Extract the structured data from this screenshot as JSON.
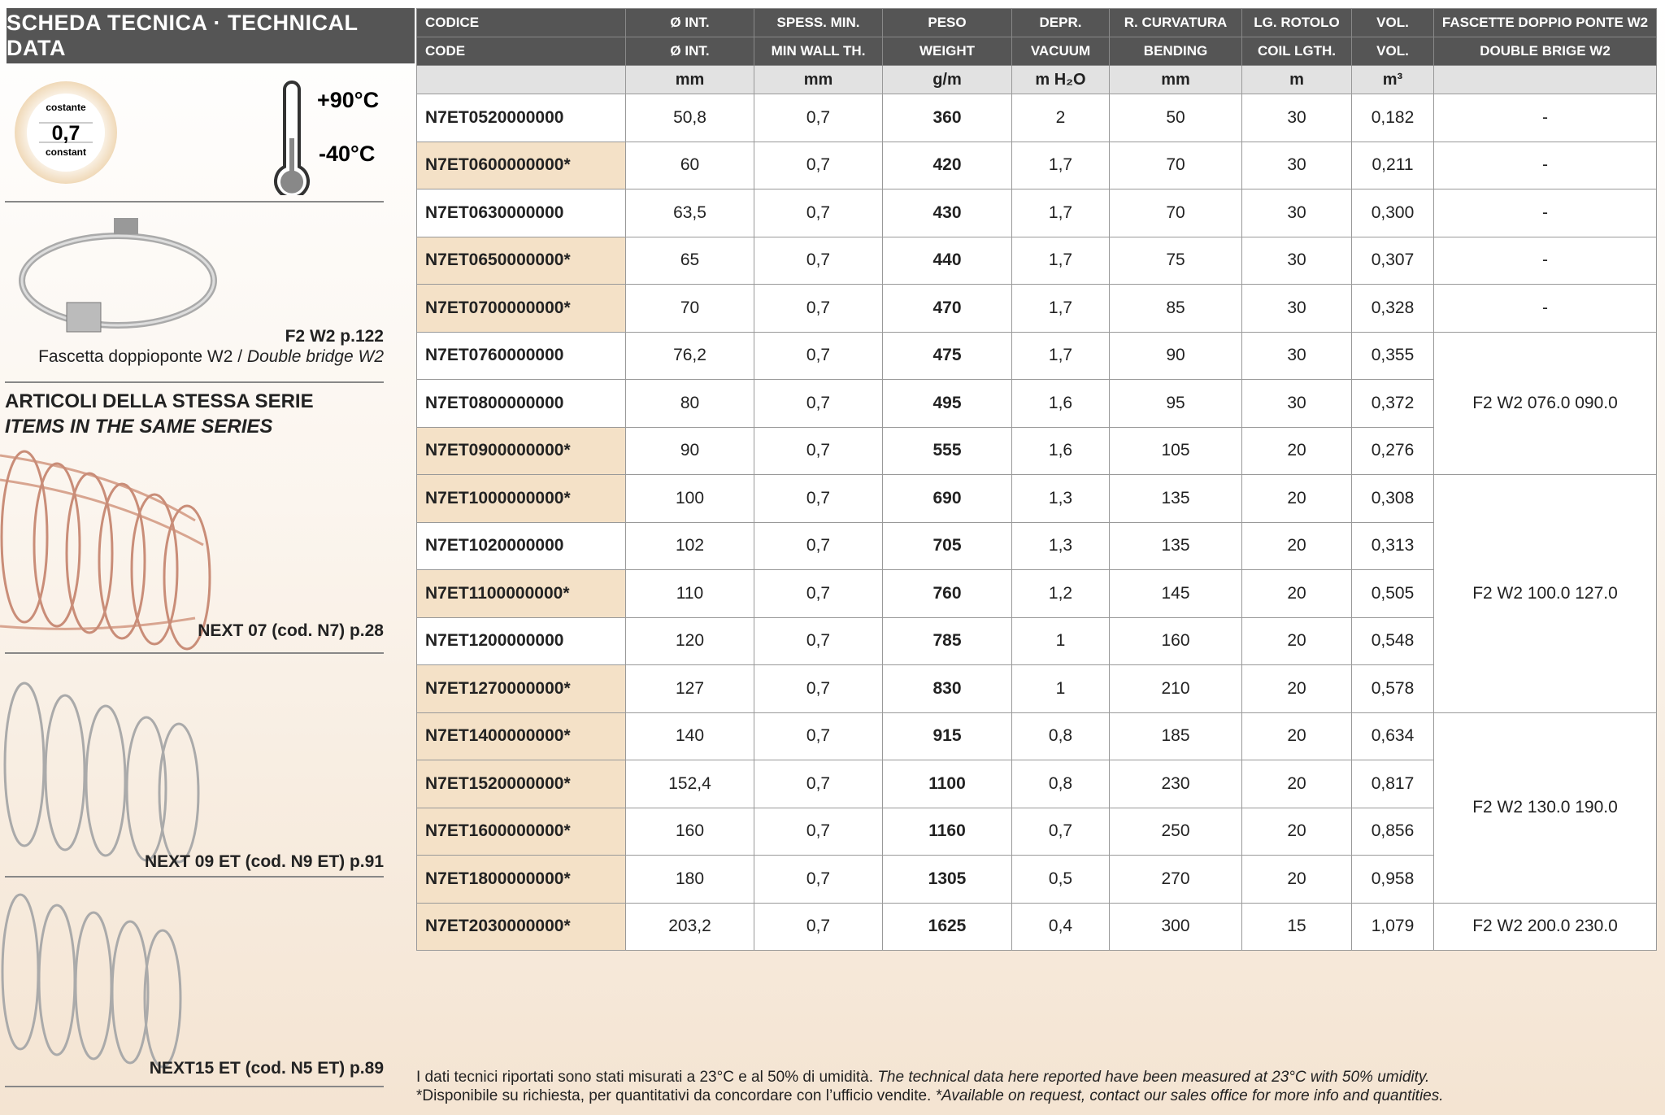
{
  "sidebar": {
    "title": "SCHEDA TECNICA · TECHNICAL DATA",
    "badge": {
      "top": "costante",
      "value": "0,7",
      "bottom": "constant"
    },
    "temp": {
      "max": "+90°C",
      "min": "-40°C"
    },
    "clamp": {
      "ref": "F2 W2 p.122",
      "caption_it": "Fascetta doppioponte W2 /",
      "caption_en": "Double bridge W2"
    },
    "series_title_it": "ARTICOLI DELLA STESSA SERIE",
    "series_title_en": "ITEMS IN THE SAME SERIES",
    "items": [
      "NEXT 07 (cod. N7) p.28",
      "NEXT 09 ET (cod. N9 ET) p.91",
      "NEXT15 ET (cod. N5 ET) p.89"
    ]
  },
  "table": {
    "header_it": [
      "CODICE",
      "Ø INT.",
      "SPESS. MIN.",
      "PESO",
      "DEPR.",
      "R. CURVATURA",
      "LG. ROTOLO",
      "VOL.",
      "FASCETTE DOPPIO PONTE W2"
    ],
    "header_en": [
      "CODE",
      "Ø INT.",
      "MIN WALL TH.",
      "WEIGHT",
      "VACUUM",
      "BENDING",
      "COIL LGTH.",
      "VOL.",
      "DOUBLE BRIGE W2"
    ],
    "units": [
      "mm",
      "mm",
      "g/m",
      "m H₂O",
      "mm",
      "m",
      "m³"
    ],
    "rows": [
      {
        "code": "N7ET0520000000",
        "highlight": false,
        "values": [
          "50,8",
          "0,7",
          "360",
          "2",
          "50",
          "30",
          "0,182"
        ]
      },
      {
        "code": "N7ET0600000000*",
        "highlight": true,
        "values": [
          "60",
          "0,7",
          "420",
          "1,7",
          "70",
          "30",
          "0,211"
        ]
      },
      {
        "code": "N7ET0630000000",
        "highlight": false,
        "values": [
          "63,5",
          "0,7",
          "430",
          "1,7",
          "70",
          "30",
          "0,300"
        ]
      },
      {
        "code": "N7ET0650000000*",
        "highlight": true,
        "values": [
          "65",
          "0,7",
          "440",
          "1,7",
          "75",
          "30",
          "0,307"
        ]
      },
      {
        "code": "N7ET0700000000*",
        "highlight": true,
        "values": [
          "70",
          "0,7",
          "470",
          "1,7",
          "85",
          "30",
          "0,328"
        ]
      },
      {
        "code": "N7ET0760000000",
        "highlight": false,
        "values": [
          "76,2",
          "0,7",
          "475",
          "1,7",
          "90",
          "30",
          "0,355"
        ]
      },
      {
        "code": "N7ET0800000000",
        "highlight": false,
        "values": [
          "80",
          "0,7",
          "495",
          "1,6",
          "95",
          "30",
          "0,372"
        ]
      },
      {
        "code": "N7ET0900000000*",
        "highlight": true,
        "values": [
          "90",
          "0,7",
          "555",
          "1,6",
          "105",
          "20",
          "0,276"
        ]
      },
      {
        "code": "N7ET1000000000*",
        "highlight": true,
        "values": [
          "100",
          "0,7",
          "690",
          "1,3",
          "135",
          "20",
          "0,308"
        ]
      },
      {
        "code": "N7ET1020000000",
        "highlight": false,
        "values": [
          "102",
          "0,7",
          "705",
          "1,3",
          "135",
          "20",
          "0,313"
        ]
      },
      {
        "code": "N7ET1100000000*",
        "highlight": true,
        "values": [
          "110",
          "0,7",
          "760",
          "1,2",
          "145",
          "20",
          "0,505"
        ]
      },
      {
        "code": "N7ET1200000000",
        "highlight": false,
        "values": [
          "120",
          "0,7",
          "785",
          "1",
          "160",
          "20",
          "0,548"
        ]
      },
      {
        "code": "N7ET1270000000*",
        "highlight": true,
        "values": [
          "127",
          "0,7",
          "830",
          "1",
          "210",
          "20",
          "0,578"
        ]
      },
      {
        "code": "N7ET1400000000*",
        "highlight": true,
        "values": [
          "140",
          "0,7",
          "915",
          "0,8",
          "185",
          "20",
          "0,634"
        ]
      },
      {
        "code": "N7ET1520000000*",
        "highlight": true,
        "values": [
          "152,4",
          "0,7",
          "1100",
          "0,8",
          "230",
          "20",
          "0,817"
        ]
      },
      {
        "code": "N7ET1600000000*",
        "highlight": true,
        "values": [
          "160",
          "0,7",
          "1160",
          "0,7",
          "250",
          "20",
          "0,856"
        ]
      },
      {
        "code": "N7ET1800000000*",
        "highlight": true,
        "values": [
          "180",
          "0,7",
          "1305",
          "0,5",
          "270",
          "20",
          "0,958"
        ]
      },
      {
        "code": "N7ET2030000000*",
        "highlight": true,
        "values": [
          "203,2",
          "0,7",
          "1625",
          "0,4",
          "300",
          "15",
          "1,079"
        ]
      }
    ],
    "clamps": [
      {
        "label": "-",
        "rows": 1
      },
      {
        "label": "-",
        "rows": 1
      },
      {
        "label": "-",
        "rows": 1
      },
      {
        "label": "-",
        "rows": 1
      },
      {
        "label": "-",
        "rows": 1
      },
      {
        "label": "F2 W2 076.0 090.0",
        "rows": 3
      },
      {
        "label": "F2 W2 100.0 127.0",
        "rows": 5
      },
      {
        "label": "F2 W2 130.0 190.0",
        "rows": 4
      },
      {
        "label": "F2 W2 200.0 230.0",
        "rows": 1
      }
    ]
  },
  "footer": {
    "notes": [
      {
        "it": "I dati tecnici riportati sono stati misurati a 23°C e al 50% di umidità.",
        "en": "The technical data here reported have been measured at 23°C with 50% umidity."
      },
      {
        "it": "*Disponibile su richiesta, per quantitativi da concordare con l’ufficio vendite.",
        "en": "*Available on request, contact our sales office for more info and quantities."
      }
    ]
  }
}
